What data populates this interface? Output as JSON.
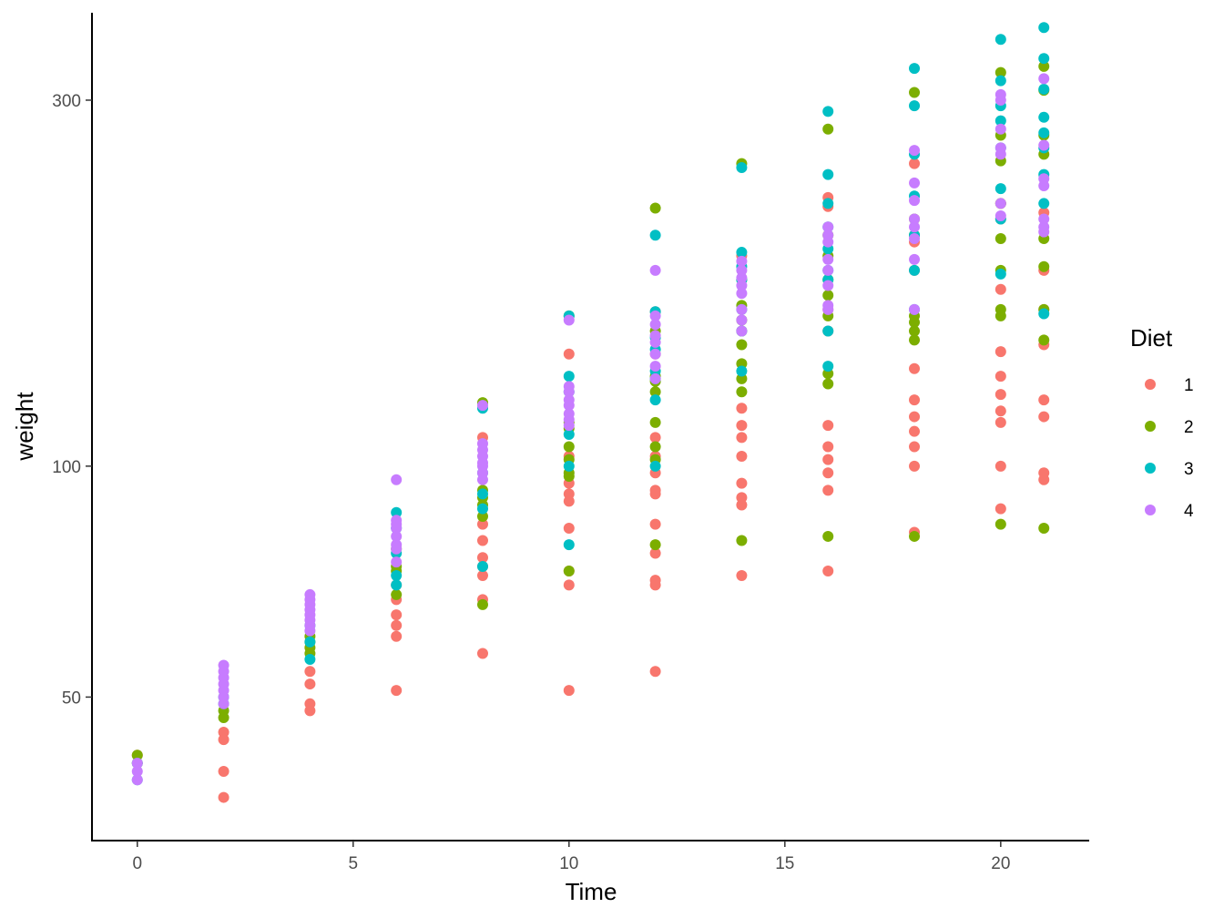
{
  "chart_data": {
    "type": "scatter",
    "xlabel": "Time",
    "ylabel": "weight",
    "y_scale": "log",
    "xlim": [
      -1.05,
      22.05
    ],
    "ylim": [
      32.5,
      390
    ],
    "x_ticks": [
      0,
      5,
      10,
      15,
      20
    ],
    "y_ticks": [
      50,
      100,
      300
    ],
    "grid": false,
    "legend": {
      "title": "Diet",
      "position": "right"
    },
    "series": [
      {
        "name": "1",
        "color": "#F8766D",
        "points": [
          [
            0,
            42
          ],
          [
            2,
            37
          ],
          [
            2,
            40
          ],
          [
            2,
            45
          ],
          [
            2,
            44
          ],
          [
            4,
            48
          ],
          [
            4,
            49
          ],
          [
            4,
            54
          ],
          [
            4,
            52
          ],
          [
            6,
            51
          ],
          [
            6,
            60
          ],
          [
            6,
            62
          ],
          [
            6,
            64
          ],
          [
            6,
            67
          ],
          [
            6,
            70
          ],
          [
            8,
            57
          ],
          [
            8,
            67
          ],
          [
            8,
            72
          ],
          [
            8,
            74
          ],
          [
            8,
            76
          ],
          [
            8,
            80
          ],
          [
            8,
            84
          ],
          [
            8,
            109
          ],
          [
            10,
            51
          ],
          [
            10,
            70
          ],
          [
            10,
            73
          ],
          [
            10,
            83
          ],
          [
            10,
            90
          ],
          [
            10,
            92
          ],
          [
            10,
            95
          ],
          [
            10,
            103
          ],
          [
            10,
            140
          ],
          [
            12,
            54
          ],
          [
            12,
            70
          ],
          [
            12,
            71
          ],
          [
            12,
            77
          ],
          [
            12,
            84
          ],
          [
            12,
            92
          ],
          [
            12,
            93
          ],
          [
            12,
            98
          ],
          [
            12,
            103
          ],
          [
            12,
            109
          ],
          [
            12,
            140
          ],
          [
            12,
            159
          ],
          [
            14,
            72
          ],
          [
            14,
            89
          ],
          [
            14,
            91
          ],
          [
            14,
            95
          ],
          [
            14,
            103
          ],
          [
            14,
            109
          ],
          [
            14,
            113
          ],
          [
            14,
            119
          ],
          [
            14,
            188
          ],
          [
            16,
            73
          ],
          [
            16,
            93
          ],
          [
            16,
            98
          ],
          [
            16,
            102
          ],
          [
            16,
            106
          ],
          [
            16,
            113
          ],
          [
            16,
            150
          ],
          [
            16,
            160
          ],
          [
            16,
            218
          ],
          [
            16,
            224
          ],
          [
            18,
            82
          ],
          [
            18,
            100
          ],
          [
            18,
            106
          ],
          [
            18,
            111
          ],
          [
            18,
            116
          ],
          [
            18,
            122
          ],
          [
            18,
            134
          ],
          [
            18,
            180
          ],
          [
            18,
            196
          ],
          [
            18,
            248
          ],
          [
            20,
            88
          ],
          [
            20,
            100
          ],
          [
            20,
            114
          ],
          [
            20,
            118
          ],
          [
            20,
            124
          ],
          [
            20,
            131
          ],
          [
            20,
            141
          ],
          [
            20,
            170
          ],
          [
            20,
            210
          ],
          [
            20,
            220
          ],
          [
            21,
            96
          ],
          [
            21,
            98
          ],
          [
            21,
            116
          ],
          [
            21,
            122
          ],
          [
            21,
            144
          ],
          [
            21,
            160
          ],
          [
            21,
            180
          ],
          [
            21,
            214
          ]
        ]
      },
      {
        "name": "2",
        "color": "#7CAE00",
        "points": [
          [
            0,
            41
          ],
          [
            0,
            42
          ],
          [
            2,
            47
          ],
          [
            2,
            48
          ],
          [
            4,
            57
          ],
          [
            4,
            58
          ],
          [
            4,
            59
          ],
          [
            4,
            60
          ],
          [
            6,
            68
          ],
          [
            6,
            73
          ],
          [
            6,
            74
          ],
          [
            6,
            78
          ],
          [
            8,
            66
          ],
          [
            8,
            86
          ],
          [
            8,
            89
          ],
          [
            8,
            91
          ],
          [
            8,
            93
          ],
          [
            8,
            121
          ],
          [
            10,
            73
          ],
          [
            10,
            97
          ],
          [
            10,
            98
          ],
          [
            10,
            102
          ],
          [
            10,
            106
          ],
          [
            10,
            112
          ],
          [
            10,
            114
          ],
          [
            10,
            157
          ],
          [
            12,
            79
          ],
          [
            12,
            102
          ],
          [
            12,
            106
          ],
          [
            12,
            114
          ],
          [
            12,
            125
          ],
          [
            12,
            129
          ],
          [
            12,
            131
          ],
          [
            12,
            150
          ],
          [
            12,
            217
          ],
          [
            14,
            80
          ],
          [
            14,
            125
          ],
          [
            14,
            130
          ],
          [
            14,
            136
          ],
          [
            14,
            144
          ],
          [
            14,
            150
          ],
          [
            14,
            155
          ],
          [
            14,
            162
          ],
          [
            14,
            175
          ],
          [
            14,
            248
          ],
          [
            16,
            81
          ],
          [
            16,
            128
          ],
          [
            16,
            132
          ],
          [
            16,
            157
          ],
          [
            16,
            167
          ],
          [
            16,
            175
          ],
          [
            16,
            188
          ],
          [
            16,
            200
          ],
          [
            16,
            275
          ],
          [
            18,
            81
          ],
          [
            18,
            146
          ],
          [
            18,
            150
          ],
          [
            18,
            154
          ],
          [
            18,
            157
          ],
          [
            18,
            200
          ],
          [
            18,
            210
          ],
          [
            18,
            307
          ],
          [
            20,
            84
          ],
          [
            20,
            157
          ],
          [
            20,
            160
          ],
          [
            20,
            180
          ],
          [
            20,
            198
          ],
          [
            20,
            220
          ],
          [
            20,
            250
          ],
          [
            20,
            270
          ],
          [
            20,
            326
          ],
          [
            21,
            83
          ],
          [
            21,
            146
          ],
          [
            21,
            160
          ],
          [
            21,
            182
          ],
          [
            21,
            198
          ],
          [
            21,
            255
          ],
          [
            21,
            270
          ],
          [
            21,
            309
          ],
          [
            21,
            332
          ]
        ]
      },
      {
        "name": "3",
        "color": "#00BFC4",
        "points": [
          [
            0,
            41
          ],
          [
            0,
            39
          ],
          [
            2,
            49
          ],
          [
            2,
            50
          ],
          [
            4,
            56
          ],
          [
            4,
            59
          ],
          [
            4,
            62
          ],
          [
            6,
            70
          ],
          [
            6,
            72
          ],
          [
            6,
            77
          ],
          [
            6,
            83
          ],
          [
            6,
            87
          ],
          [
            8,
            74
          ],
          [
            8,
            88
          ],
          [
            8,
            92
          ],
          [
            8,
            98
          ],
          [
            8,
            119
          ],
          [
            10,
            79
          ],
          [
            10,
            100
          ],
          [
            10,
            110
          ],
          [
            10,
            125
          ],
          [
            10,
            131
          ],
          [
            10,
            157
          ],
          [
            12,
            100
          ],
          [
            12,
            122
          ],
          [
            12,
            130
          ],
          [
            12,
            133
          ],
          [
            12,
            142
          ],
          [
            12,
            147
          ],
          [
            12,
            159
          ],
          [
            12,
            200
          ],
          [
            14,
            133
          ],
          [
            14,
            150
          ],
          [
            14,
            160
          ],
          [
            14,
            175
          ],
          [
            14,
            182
          ],
          [
            14,
            190
          ],
          [
            14,
            245
          ],
          [
            16,
            135
          ],
          [
            16,
            150
          ],
          [
            16,
            175
          ],
          [
            16,
            180
          ],
          [
            16,
            192
          ],
          [
            16,
            205
          ],
          [
            16,
            220
          ],
          [
            16,
            240
          ],
          [
            16,
            290
          ],
          [
            18,
            160
          ],
          [
            18,
            180
          ],
          [
            18,
            200
          ],
          [
            18,
            225
          ],
          [
            18,
            255
          ],
          [
            18,
            295
          ],
          [
            18,
            330
          ],
          [
            20,
            178
          ],
          [
            20,
            210
          ],
          [
            20,
            230
          ],
          [
            20,
            260
          ],
          [
            20,
            282
          ],
          [
            20,
            295
          ],
          [
            20,
            318
          ],
          [
            20,
            360
          ],
          [
            21,
            158
          ],
          [
            21,
            220
          ],
          [
            21,
            240
          ],
          [
            21,
            260
          ],
          [
            21,
            272
          ],
          [
            21,
            285
          ],
          [
            21,
            310
          ],
          [
            21,
            340
          ],
          [
            21,
            373
          ]
        ]
      },
      {
        "name": "4",
        "color": "#C77CFF",
        "points": [
          [
            0,
            39
          ],
          [
            0,
            40
          ],
          [
            0,
            41
          ],
          [
            2,
            49
          ],
          [
            2,
            50
          ],
          [
            2,
            51
          ],
          [
            2,
            52
          ],
          [
            2,
            53
          ],
          [
            2,
            54
          ],
          [
            2,
            55
          ],
          [
            4,
            61
          ],
          [
            4,
            62
          ],
          [
            4,
            63
          ],
          [
            4,
            64
          ],
          [
            4,
            65
          ],
          [
            4,
            66
          ],
          [
            4,
            67
          ],
          [
            4,
            68
          ],
          [
            6,
            75
          ],
          [
            6,
            78
          ],
          [
            6,
            79
          ],
          [
            6,
            81
          ],
          [
            6,
            83
          ],
          [
            6,
            84
          ],
          [
            6,
            85
          ],
          [
            6,
            96
          ],
          [
            8,
            96
          ],
          [
            8,
            98
          ],
          [
            8,
            100
          ],
          [
            8,
            101
          ],
          [
            8,
            103
          ],
          [
            8,
            105
          ],
          [
            8,
            107
          ],
          [
            8,
            120
          ],
          [
            10,
            113
          ],
          [
            10,
            115
          ],
          [
            10,
            117
          ],
          [
            10,
            120
          ],
          [
            10,
            122
          ],
          [
            10,
            125
          ],
          [
            10,
            127
          ],
          [
            10,
            155
          ],
          [
            12,
            130
          ],
          [
            12,
            135
          ],
          [
            12,
            140
          ],
          [
            12,
            145
          ],
          [
            12,
            148
          ],
          [
            12,
            153
          ],
          [
            12,
            157
          ],
          [
            12,
            180
          ],
          [
            14,
            150
          ],
          [
            14,
            155
          ],
          [
            14,
            160
          ],
          [
            14,
            168
          ],
          [
            14,
            172
          ],
          [
            14,
            176
          ],
          [
            14,
            180
          ],
          [
            14,
            185
          ],
          [
            16,
            160
          ],
          [
            16,
            162
          ],
          [
            16,
            172
          ],
          [
            16,
            180
          ],
          [
            16,
            186
          ],
          [
            16,
            196
          ],
          [
            16,
            200
          ],
          [
            16,
            205
          ],
          [
            18,
            160
          ],
          [
            18,
            186
          ],
          [
            18,
            198
          ],
          [
            18,
            205
          ],
          [
            18,
            210
          ],
          [
            18,
            222
          ],
          [
            18,
            234
          ],
          [
            18,
            258
          ],
          [
            20,
            212
          ],
          [
            20,
            220
          ],
          [
            20,
            255
          ],
          [
            20,
            260
          ],
          [
            20,
            275
          ],
          [
            20,
            300
          ],
          [
            20,
            305
          ],
          [
            21,
            202
          ],
          [
            21,
            205
          ],
          [
            21,
            210
          ],
          [
            21,
            232
          ],
          [
            21,
            237
          ],
          [
            21,
            262
          ],
          [
            21,
            320
          ]
        ]
      }
    ]
  }
}
